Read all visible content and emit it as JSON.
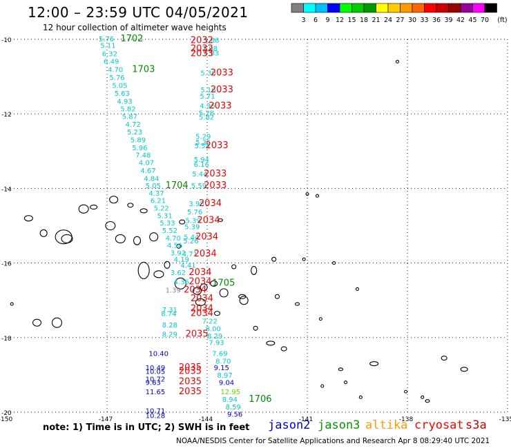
{
  "header": {
    "title": "12:00 – 23:59 UTC 04/05/2021",
    "subtitle": "12 hour collection of altimeter wave heights"
  },
  "colorbar": {
    "unit": "(ft)",
    "ticks": [
      "3",
      "6",
      "9",
      "12",
      "15",
      "18",
      "21",
      "24",
      "27",
      "30",
      "33",
      "36",
      "39",
      "42",
      "45",
      "70"
    ],
    "colors": [
      "#808080",
      "#00ffff",
      "#00bfff",
      "#0000ff",
      "#00ff00",
      "#00cc00",
      "#009900",
      "#ffff00",
      "#ffcc00",
      "#ff9900",
      "#ff6600",
      "#ff0000",
      "#cc0000",
      "#990000",
      "#990099",
      "#ff00ff",
      "#000000"
    ]
  },
  "axes": {
    "x_ticks": [
      "-150",
      "-147",
      "-144",
      "-141",
      "-138",
      "-135"
    ],
    "y_ticks": [
      "-10",
      "-12",
      "-14",
      "-16",
      "-18",
      "-20"
    ]
  },
  "satellites": {
    "jason2": {
      "label": "jason2",
      "color": "#0000cc"
    },
    "jason3": {
      "label": "jason3",
      "color": "#009900"
    },
    "altika": {
      "label": "altika",
      "color": "#ff9900"
    },
    "cryosat": {
      "label": "cryosat",
      "color": "#ff0000"
    },
    "s3a": {
      "label": "s3a",
      "color": "#cc0000"
    }
  },
  "colors": {
    "cyan_track": "#00cccc",
    "blue_track": "#0000cc",
    "green_time": "#008800",
    "red_time": "#ee0000"
  },
  "observations": [
    {
      "lon": -147.25,
      "lat": -9.98,
      "text": "5.76",
      "c": "cyan"
    },
    {
      "lon": -146.6,
      "lat": -9.98,
      "text": "1702",
      "c": "green"
    },
    {
      "lon": -147.2,
      "lat": -10.16,
      "text": "5.11",
      "c": "cyan"
    },
    {
      "lon": -147.15,
      "lat": -10.38,
      "text": "6.32",
      "c": "cyan"
    },
    {
      "lon": -147.1,
      "lat": -10.58,
      "text": "6.49",
      "c": "cyan"
    },
    {
      "lon": -146.98,
      "lat": -10.8,
      "text": "4.70",
      "c": "cyan"
    },
    {
      "lon": -146.25,
      "lat": -10.8,
      "text": "1703",
      "c": "green"
    },
    {
      "lon": -146.93,
      "lat": -11.02,
      "text": "5.76",
      "c": "cyan"
    },
    {
      "lon": -146.85,
      "lat": -11.23,
      "text": "5.05",
      "c": "cyan"
    },
    {
      "lon": -146.78,
      "lat": -11.44,
      "text": "5.63",
      "c": "cyan"
    },
    {
      "lon": -146.7,
      "lat": -11.65,
      "text": "4.93",
      "c": "cyan"
    },
    {
      "lon": -146.6,
      "lat": -11.86,
      "text": "5.82",
      "c": "cyan"
    },
    {
      "lon": -146.55,
      "lat": -12.06,
      "text": "5.87",
      "c": "cyan"
    },
    {
      "lon": -146.45,
      "lat": -12.27,
      "text": "4.72",
      "c": "cyan"
    },
    {
      "lon": -146.4,
      "lat": -12.48,
      "text": "5.23",
      "c": "cyan"
    },
    {
      "lon": -146.3,
      "lat": -12.69,
      "text": "5.89",
      "c": "cyan"
    },
    {
      "lon": -146.25,
      "lat": -12.9,
      "text": "5.96",
      "c": "cyan"
    },
    {
      "lon": -146.15,
      "lat": -13.1,
      "text": "7.48",
      "c": "cyan"
    },
    {
      "lon": -146.05,
      "lat": -13.3,
      "text": "4.07",
      "c": "cyan"
    },
    {
      "lon": -146.0,
      "lat": -13.51,
      "text": "4.67",
      "c": "cyan"
    },
    {
      "lon": -145.9,
      "lat": -13.72,
      "text": "4.84",
      "c": "cyan"
    },
    {
      "lon": -145.85,
      "lat": -13.92,
      "text": "5.05",
      "c": "cyan"
    },
    {
      "lon": -145.25,
      "lat": -13.92,
      "text": "1704",
      "c": "green"
    },
    {
      "lon": -145.75,
      "lat": -14.12,
      "text": "4.37",
      "c": "cyan"
    },
    {
      "lon": -145.7,
      "lat": -14.32,
      "text": "6.21",
      "c": "cyan"
    },
    {
      "lon": -145.6,
      "lat": -14.52,
      "text": "5.22",
      "c": "cyan"
    },
    {
      "lon": -145.5,
      "lat": -14.72,
      "text": "5.31",
      "c": "cyan"
    },
    {
      "lon": -145.42,
      "lat": -14.92,
      "text": "5.33",
      "c": "cyan"
    },
    {
      "lon": -145.35,
      "lat": -15.12,
      "text": "5.52",
      "c": "cyan"
    },
    {
      "lon": -145.25,
      "lat": -15.32,
      "text": "4.70",
      "c": "cyan"
    },
    {
      "lon": -145.2,
      "lat": -15.52,
      "text": "4.56",
      "c": "cyan"
    },
    {
      "lon": -145.1,
      "lat": -15.72,
      "text": "3.92",
      "c": "cyan"
    },
    {
      "lon": -145.0,
      "lat": -15.9,
      "text": "4.19",
      "c": "cyan"
    },
    {
      "lon": -144.1,
      "lat": -10.02,
      "text": "5.86",
      "c": "cyan"
    },
    {
      "lon": -144.15,
      "lat": -10.24,
      "text": "7.98",
      "c": "cyan"
    },
    {
      "lon": -144.1,
      "lat": -10.36,
      "text": "4.83",
      "c": "cyan"
    },
    {
      "lon": -144.2,
      "lat": -10.9,
      "text": "5.30",
      "c": "cyan"
    },
    {
      "lon": -144.2,
      "lat": -11.35,
      "text": "5.16",
      "c": "cyan"
    },
    {
      "lon": -144.22,
      "lat": -11.52,
      "text": "5.71",
      "c": "cyan"
    },
    {
      "lon": -144.22,
      "lat": -11.77,
      "text": "4.96",
      "c": "cyan"
    },
    {
      "lon": -144.25,
      "lat": -11.97,
      "text": "5.28",
      "c": "cyan"
    },
    {
      "lon": -144.25,
      "lat": -12.08,
      "text": "5.82",
      "c": "cyan"
    },
    {
      "lon": -144.35,
      "lat": -12.6,
      "text": "5.29",
      "c": "cyan"
    },
    {
      "lon": -144.35,
      "lat": -12.75,
      "text": "5.35",
      "c": "cyan"
    },
    {
      "lon": -144.38,
      "lat": -12.85,
      "text": "5.55",
      "c": "cyan"
    },
    {
      "lon": -144.4,
      "lat": -13.22,
      "text": "5.94",
      "c": "cyan"
    },
    {
      "lon": -144.4,
      "lat": -13.35,
      "text": "6.16",
      "c": "cyan"
    },
    {
      "lon": -144.45,
      "lat": -13.6,
      "text": "5.44",
      "c": "cyan"
    },
    {
      "lon": -144.48,
      "lat": -13.92,
      "text": "5.59",
      "c": "cyan"
    },
    {
      "lon": -144.55,
      "lat": -14.4,
      "text": "3.98",
      "c": "cyan"
    },
    {
      "lon": -144.6,
      "lat": -14.62,
      "text": "5.76",
      "c": "cyan"
    },
    {
      "lon": -144.65,
      "lat": -14.85,
      "text": "5.39",
      "c": "cyan"
    },
    {
      "lon": -144.68,
      "lat": -15.02,
      "text": "5.39",
      "c": "cyan"
    },
    {
      "lon": -144.7,
      "lat": -15.3,
      "text": "5.44",
      "c": "cyan"
    },
    {
      "lon": -144.72,
      "lat": -15.4,
      "text": "5.26",
      "c": "cyan"
    },
    {
      "lon": -144.75,
      "lat": -15.75,
      "text": "4.71",
      "c": "cyan"
    },
    {
      "lon": -144.5,
      "lat": -10.03,
      "text": "2032",
      "c": "red"
    },
    {
      "lon": -144.5,
      "lat": -10.25,
      "text": "2032",
      "c": "red"
    },
    {
      "lon": -144.5,
      "lat": -10.38,
      "text": "2033",
      "c": "red"
    },
    {
      "lon": -143.9,
      "lat": -10.9,
      "text": "2033",
      "c": "red"
    },
    {
      "lon": -143.9,
      "lat": -11.35,
      "text": "2033",
      "c": "red"
    },
    {
      "lon": -143.95,
      "lat": -11.78,
      "text": "2033",
      "c": "red"
    },
    {
      "lon": -144.05,
      "lat": -12.85,
      "text": "2033",
      "c": "red"
    },
    {
      "lon": -144.1,
      "lat": -13.6,
      "text": "2033",
      "c": "red"
    },
    {
      "lon": -144.1,
      "lat": -13.92,
      "text": "2033",
      "c": "red"
    },
    {
      "lon": -144.25,
      "lat": -14.4,
      "text": "2034",
      "c": "red"
    },
    {
      "lon": -144.3,
      "lat": -14.85,
      "text": "2034",
      "c": "red"
    },
    {
      "lon": -144.35,
      "lat": -15.3,
      "text": "2034",
      "c": "red"
    },
    {
      "lon": -144.4,
      "lat": -15.75,
      "text": "2034",
      "c": "red"
    },
    {
      "lon": -144.8,
      "lat": -16.05,
      "text": "4.41",
      "c": "cyan"
    },
    {
      "lon": -145.1,
      "lat": -16.25,
      "text": "3.62",
      "c": "cyan"
    },
    {
      "lon": -144.55,
      "lat": -16.25,
      "text": "2034",
      "c": "red"
    },
    {
      "lon": -145.0,
      "lat": -16.5,
      "text": "4.36",
      "c": "cyan"
    },
    {
      "lon": -144.55,
      "lat": -16.5,
      "text": "2034",
      "c": "red"
    },
    {
      "lon": -143.85,
      "lat": -16.53,
      "text": "1705",
      "c": "green"
    },
    {
      "lon": -145.25,
      "lat": -16.72,
      "text": "1.39",
      "c": "gray"
    },
    {
      "lon": -144.7,
      "lat": -16.72,
      "text": "2034",
      "c": "red"
    },
    {
      "lon": -144.5,
      "lat": -16.95,
      "text": "2034",
      "c": "red"
    },
    {
      "lon": -145.35,
      "lat": -17.25,
      "text": "7.31",
      "c": "cyan"
    },
    {
      "lon": -144.5,
      "lat": -17.22,
      "text": "2034",
      "c": "red"
    },
    {
      "lon": -145.38,
      "lat": -17.35,
      "text": "8.74",
      "c": "cyan"
    },
    {
      "lon": -144.5,
      "lat": -17.35,
      "text": "2034",
      "c": "red"
    },
    {
      "lon": -144.15,
      "lat": -17.55,
      "text": "7.22",
      "c": "cyan"
    },
    {
      "lon": -145.35,
      "lat": -17.65,
      "text": "8.28",
      "c": "cyan"
    },
    {
      "lon": -144.05,
      "lat": -17.75,
      "text": "8.00",
      "c": "cyan"
    },
    {
      "lon": -145.35,
      "lat": -17.9,
      "text": "8.29",
      "c": "cyan"
    },
    {
      "lon": -144.65,
      "lat": -17.9,
      "text": "2035",
      "c": "red"
    },
    {
      "lon": -144.0,
      "lat": -17.95,
      "text": "8.29",
      "c": "cyan"
    },
    {
      "lon": -143.95,
      "lat": -18.12,
      "text": "7.93",
      "c": "cyan"
    },
    {
      "lon": -145.75,
      "lat": -18.42,
      "text": "10.40",
      "c": "blue"
    },
    {
      "lon": -143.85,
      "lat": -18.42,
      "text": "7.69",
      "c": "cyan"
    },
    {
      "lon": -143.75,
      "lat": -18.62,
      "text": "8.70",
      "c": "cyan"
    },
    {
      "lon": -145.85,
      "lat": -18.8,
      "text": "10.49",
      "c": "blue"
    },
    {
      "lon": -145.85,
      "lat": -18.9,
      "text": "10.05",
      "c": "blue"
    },
    {
      "lon": -144.85,
      "lat": -18.8,
      "text": "2035",
      "c": "red"
    },
    {
      "lon": -144.85,
      "lat": -18.9,
      "text": "2035",
      "c": "red"
    },
    {
      "lon": -143.8,
      "lat": -18.8,
      "text": "9.15",
      "c": "blue"
    },
    {
      "lon": -143.7,
      "lat": -19.0,
      "text": "8.97",
      "c": "cyan"
    },
    {
      "lon": -145.85,
      "lat": -19.1,
      "text": "10.72",
      "c": "blue"
    },
    {
      "lon": -145.85,
      "lat": -19.2,
      "text": "9.63",
      "c": "blue"
    },
    {
      "lon": -144.85,
      "lat": -19.18,
      "text": "2035",
      "c": "red"
    },
    {
      "lon": -143.65,
      "lat": -19.2,
      "text": "9.04",
      "c": "blue"
    },
    {
      "lon": -145.85,
      "lat": -19.45,
      "text": "11.65",
      "c": "blue"
    },
    {
      "lon": -144.85,
      "lat": -19.45,
      "text": "2035",
      "c": "red"
    },
    {
      "lon": -143.6,
      "lat": -19.45,
      "text": "12.95",
      "c": "lime"
    },
    {
      "lon": -143.55,
      "lat": -19.65,
      "text": "8.94",
      "c": "cyan"
    },
    {
      "lon": -142.75,
      "lat": -19.65,
      "text": "1706",
      "c": "green"
    },
    {
      "lon": -145.85,
      "lat": -19.95,
      "text": "10.71",
      "c": "blue"
    },
    {
      "lon": -143.45,
      "lat": -19.85,
      "text": "8.59",
      "c": "cyan"
    },
    {
      "lon": -145.85,
      "lat": -20.08,
      "text": "10.28",
      "c": "blue"
    },
    {
      "lon": -143.4,
      "lat": -20.05,
      "text": "9.56",
      "c": "blue"
    }
  ],
  "note": "note: 1) Time is in UTC; 2) SWH is in feet",
  "credit": "NOAA/NESDIS Center for Satellite Applications and Research   Apr  8 08:29:40 UTC 2021"
}
